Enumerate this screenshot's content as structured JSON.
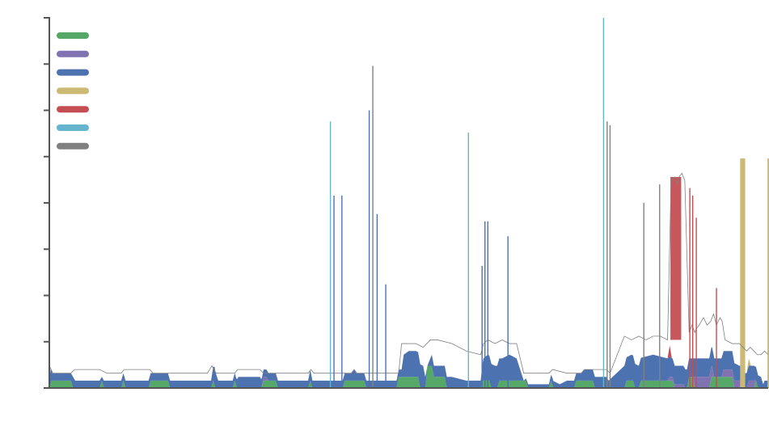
{
  "chart_data": {
    "type": "area",
    "stacked": true,
    "title": "",
    "xlabel": "",
    "ylabel": "",
    "grid": false,
    "legend_position": "top-left",
    "legend_labels_visible": false,
    "tick_labels_visible": false,
    "x_range": [
      0,
      100
    ],
    "y_range": [
      0,
      100
    ],
    "y_tick_count": 9,
    "colors": {
      "green": "#55a868",
      "purple": "#8172b2",
      "blue": "#4c72b0",
      "yellow": "#ccb974",
      "red": "#c44e52",
      "cyan": "#64b5cd",
      "gray": "#808080"
    },
    "series": [
      {
        "color": "#55a868",
        "points": [
          [
            0,
            0
          ],
          [
            0.3,
            2
          ],
          [
            3,
            2
          ],
          [
            3.3,
            0
          ],
          [
            7,
            0
          ],
          [
            7.3,
            2
          ],
          [
            7.6,
            0
          ],
          [
            10,
            0
          ],
          [
            10.3,
            2
          ],
          [
            10.6,
            0
          ],
          [
            13.8,
            0
          ],
          [
            14.1,
            2
          ],
          [
            16.5,
            2
          ],
          [
            16.8,
            0
          ],
          [
            22.5,
            0
          ],
          [
            22.8,
            2
          ],
          [
            23.1,
            0
          ],
          [
            25.5,
            0
          ],
          [
            25.8,
            2
          ],
          [
            26.1,
            0
          ],
          [
            29.5,
            0
          ],
          [
            29.8,
            2
          ],
          [
            31.5,
            2
          ],
          [
            31.8,
            0
          ],
          [
            36,
            0
          ],
          [
            36.3,
            2
          ],
          [
            36.6,
            0
          ],
          [
            40.8,
            0
          ],
          [
            41.1,
            2
          ],
          [
            43.8,
            2
          ],
          [
            44.1,
            0
          ],
          [
            48.3,
            0
          ],
          [
            48.6,
            3
          ],
          [
            51.3,
            3
          ],
          [
            51.6,
            0
          ],
          [
            52.3,
            0
          ],
          [
            52.6,
            6
          ],
          [
            53.2,
            6
          ],
          [
            53.5,
            3
          ],
          [
            55,
            3
          ],
          [
            55.3,
            0
          ],
          [
            60,
            0
          ],
          [
            60.3,
            2
          ],
          [
            61.2,
            2
          ],
          [
            61.5,
            0
          ],
          [
            62.3,
            0
          ],
          [
            62.6,
            2
          ],
          [
            66.3,
            2
          ],
          [
            66.6,
            0
          ],
          [
            69.5,
            0
          ],
          [
            69.8,
            2
          ],
          [
            70.1,
            0
          ],
          [
            73,
            0
          ],
          [
            73.3,
            2
          ],
          [
            75.6,
            2
          ],
          [
            75.9,
            0
          ],
          [
            80,
            0
          ],
          [
            80.3,
            2
          ],
          [
            81.2,
            2
          ],
          [
            81.5,
            0
          ],
          [
            82,
            0
          ],
          [
            82.3,
            2
          ],
          [
            86.7,
            2
          ],
          [
            87,
            0
          ],
          [
            88.7,
            0
          ],
          [
            89,
            3
          ],
          [
            89.5,
            3
          ],
          [
            89.8,
            0
          ],
          [
            91.8,
            0
          ],
          [
            92.1,
            3
          ],
          [
            95,
            3
          ],
          [
            95.3,
            0
          ],
          [
            98,
            0
          ],
          [
            98.3,
            2
          ],
          [
            98.6,
            0
          ],
          [
            100,
            0
          ]
        ]
      },
      {
        "color": "#8172b2",
        "points": [
          [
            0,
            0
          ],
          [
            29.5,
            0
          ],
          [
            29.8,
            1
          ],
          [
            30.2,
            1
          ],
          [
            30.5,
            0
          ],
          [
            86,
            0
          ],
          [
            86.3,
            1
          ],
          [
            88.2,
            1
          ],
          [
            88.5,
            0
          ],
          [
            89.5,
            0
          ],
          [
            89.8,
            3
          ],
          [
            92.2,
            3
          ],
          [
            92.5,
            0
          ],
          [
            93.5,
            0
          ],
          [
            93.8,
            2
          ],
          [
            96.3,
            2
          ],
          [
            96.6,
            0
          ],
          [
            97,
            0
          ],
          [
            97.3,
            2
          ],
          [
            98,
            2
          ],
          [
            98.3,
            0
          ],
          [
            100,
            0
          ]
        ]
      },
      {
        "color": "#4c72b0",
        "points": [
          [
            0,
            2
          ],
          [
            0.2,
            4
          ],
          [
            0.4,
            2
          ],
          [
            3,
            2
          ],
          [
            3.3,
            3
          ],
          [
            3.6,
            2
          ],
          [
            7,
            2
          ],
          [
            7.3,
            1
          ],
          [
            7.6,
            2
          ],
          [
            8.5,
            2
          ],
          [
            10,
            2
          ],
          [
            10.3,
            2
          ],
          [
            14,
            2
          ],
          [
            14.3,
            2
          ],
          [
            16.5,
            2
          ],
          [
            17,
            2
          ],
          [
            20,
            2
          ],
          [
            22.5,
            2
          ],
          [
            23,
            5
          ],
          [
            23.5,
            2
          ],
          [
            26,
            2
          ],
          [
            26.3,
            3
          ],
          [
            29.3,
            3
          ],
          [
            29.6,
            2
          ],
          [
            36,
            2
          ],
          [
            36.3,
            3
          ],
          [
            36.6,
            2
          ],
          [
            42,
            2
          ],
          [
            42.4,
            3
          ],
          [
            42.7,
            2
          ],
          [
            49,
            2
          ],
          [
            49.3,
            6
          ],
          [
            50,
            7
          ],
          [
            51,
            7
          ],
          [
            52,
            6
          ],
          [
            52.6,
            0
          ],
          [
            53.2,
            3
          ],
          [
            53.5,
            3
          ],
          [
            56,
            3
          ],
          [
            58,
            2
          ],
          [
            60,
            2
          ],
          [
            60.4,
            6
          ],
          [
            61,
            7
          ],
          [
            62,
            6
          ],
          [
            63,
            6
          ],
          [
            64,
            7
          ],
          [
            65,
            6
          ],
          [
            66,
            0
          ],
          [
            66.5,
            1
          ],
          [
            69,
            1
          ],
          [
            69.5,
            1
          ],
          [
            70,
            2
          ],
          [
            71,
            1
          ],
          [
            72,
            2
          ],
          [
            74,
            2
          ],
          [
            74.5,
            3
          ],
          [
            77.5,
            3
          ],
          [
            77.8,
            2
          ],
          [
            80,
            6
          ],
          [
            81,
            7
          ],
          [
            82,
            6
          ],
          [
            84,
            7
          ],
          [
            86,
            6
          ],
          [
            86.6,
            5
          ],
          [
            88,
            5
          ],
          [
            90,
            5
          ],
          [
            92,
            5
          ],
          [
            93,
            5
          ],
          [
            94,
            5
          ],
          [
            95,
            5
          ],
          [
            96,
            4
          ],
          [
            97,
            4
          ],
          [
            98,
            4
          ],
          [
            99,
            3
          ],
          [
            99.3,
            1
          ],
          [
            99.5,
            2
          ],
          [
            100,
            2
          ]
        ]
      },
      {
        "color": "#ccb974",
        "points": [
          [
            0,
            0
          ],
          [
            97,
            0
          ],
          [
            97.3,
            2
          ],
          [
            97.6,
            0
          ],
          [
            100,
            0
          ]
        ]
      },
      {
        "color": "#c44e52",
        "points": [
          [
            0,
            0
          ],
          [
            86,
            0
          ],
          [
            86.3,
            3
          ],
          [
            86.6,
            0
          ],
          [
            100,
            0
          ]
        ]
      },
      {
        "color": "#64b5cd",
        "points": [
          [
            0,
            0
          ],
          [
            100,
            0
          ]
        ]
      },
      {
        "color": "#808080",
        "points": [
          [
            0,
            0
          ],
          [
            100,
            0
          ]
        ]
      }
    ],
    "total_outline": {
      "color": "#808080",
      "points": [
        [
          0,
          6
        ],
        [
          0.5,
          4
        ],
        [
          3,
          4
        ],
        [
          3.5,
          5
        ],
        [
          7,
          5
        ],
        [
          8,
          4
        ],
        [
          10,
          4
        ],
        [
          10.4,
          5
        ],
        [
          14,
          5
        ],
        [
          14.4,
          4
        ],
        [
          16.5,
          4
        ],
        [
          17,
          4
        ],
        [
          22,
          4
        ],
        [
          22.6,
          6
        ],
        [
          23.2,
          4
        ],
        [
          25.8,
          4
        ],
        [
          26.2,
          5
        ],
        [
          29.3,
          5
        ],
        [
          29.8,
          4
        ],
        [
          36,
          4
        ],
        [
          36.4,
          5
        ],
        [
          36.8,
          4
        ],
        [
          42,
          4
        ],
        [
          42.4,
          5
        ],
        [
          42.8,
          4
        ],
        [
          48.6,
          4
        ],
        [
          49,
          12
        ],
        [
          50,
          12
        ],
        [
          51,
          12
        ],
        [
          52,
          11
        ],
        [
          52.5,
          12
        ],
        [
          53,
          13
        ],
        [
          54,
          13
        ],
        [
          56,
          12
        ],
        [
          58,
          10
        ],
        [
          60,
          9
        ],
        [
          60.4,
          12
        ],
        [
          61,
          13
        ],
        [
          62,
          12
        ],
        [
          63,
          13
        ],
        [
          64,
          12
        ],
        [
          65,
          12
        ],
        [
          66,
          4
        ],
        [
          69.5,
          4
        ],
        [
          70,
          5
        ],
        [
          72,
          4
        ],
        [
          74,
          4
        ],
        [
          74.4,
          5
        ],
        [
          77.5,
          5
        ],
        [
          78,
          4
        ],
        [
          80,
          14
        ],
        [
          81,
          13
        ],
        [
          82,
          14
        ],
        [
          83,
          13
        ],
        [
          84,
          14
        ],
        [
          85,
          14
        ],
        [
          86,
          13
        ],
        [
          86.5,
          56
        ],
        [
          87,
          57
        ],
        [
          87.3,
          55
        ],
        [
          87.6,
          57
        ],
        [
          88,
          58
        ],
        [
          88.4,
          56
        ],
        [
          89,
          15
        ],
        [
          89.4,
          17
        ],
        [
          89.8,
          15
        ],
        [
          90,
          16
        ],
        [
          90.4,
          17
        ],
        [
          91,
          19
        ],
        [
          91.5,
          17
        ],
        [
          92,
          18
        ],
        [
          92.4,
          20
        ],
        [
          92.8,
          17
        ],
        [
          93.3,
          19
        ],
        [
          93.6,
          18
        ],
        [
          94,
          13
        ],
        [
          95,
          12
        ],
        [
          96,
          12
        ],
        [
          97,
          10
        ],
        [
          97.5,
          11
        ],
        [
          98,
          10
        ],
        [
          98.5,
          9
        ],
        [
          99,
          9
        ],
        [
          99.5,
          10
        ],
        [
          100,
          9
        ]
      ]
    },
    "spikes": [
      {
        "x": 39.1,
        "y": 72,
        "color": "#64b5cd"
      },
      {
        "x": 39.6,
        "y": 52,
        "color": "#4c72b0"
      },
      {
        "x": 40.7,
        "y": 52,
        "color": "#4c72b0"
      },
      {
        "x": 44.5,
        "y": 75,
        "color": "#4c72b0"
      },
      {
        "x": 45.0,
        "y": 87,
        "color": "#808080"
      },
      {
        "x": 45.6,
        "y": 47,
        "color": "#4c72b0"
      },
      {
        "x": 46.8,
        "y": 28,
        "color": "#4c72b0"
      },
      {
        "x": 58.3,
        "y": 69,
        "color": "#64b5cd"
      },
      {
        "x": 60.2,
        "y": 33,
        "color": "#4c72b0"
      },
      {
        "x": 60.6,
        "y": 45,
        "color": "#4c72b0"
      },
      {
        "x": 61.0,
        "y": 45,
        "color": "#4c72b0"
      },
      {
        "x": 63.8,
        "y": 41,
        "color": "#4c72b0"
      },
      {
        "x": 77.1,
        "y": 100,
        "color": "#64b5cd"
      },
      {
        "x": 77.6,
        "y": 72,
        "color": "#808080"
      },
      {
        "x": 78.0,
        "y": 71,
        "color": "#808080"
      },
      {
        "x": 82.7,
        "y": 50,
        "color": "#808080"
      },
      {
        "x": 84.9,
        "y": 55,
        "color": "#808080"
      },
      {
        "x": 89.1,
        "y": 54,
        "color": "#c44e52"
      },
      {
        "x": 89.5,
        "y": 52,
        "color": "#c44e52"
      },
      {
        "x": 90.0,
        "y": 46,
        "color": "#c44e52"
      },
      {
        "x": 92.8,
        "y": 27,
        "color": "#c44e52"
      }
    ],
    "bands": [
      {
        "x0": 86.4,
        "x1": 87.9,
        "y0": 13,
        "y1": 57,
        "color": "#c44e52"
      },
      {
        "x0": 100.1,
        "x1": 101.0,
        "y0": 8,
        "y1": 62,
        "color": "#ccb974"
      },
      {
        "x0": 100.6,
        "x1": 101.0,
        "y0": 8,
        "y1": 60,
        "color": "#ccb974"
      }
    ],
    "yellow_spikes": [
      {
        "x0": 96.1,
        "x1": 96.8,
        "y": 62
      },
      {
        "x0": 99.9,
        "x1": 100.0,
        "y": 62
      }
    ],
    "legend": [
      {
        "label": "",
        "color": "#55a868"
      },
      {
        "label": "",
        "color": "#8172b2"
      },
      {
        "label": "",
        "color": "#4c72b0"
      },
      {
        "label": "",
        "color": "#ccb974"
      },
      {
        "label": "",
        "color": "#c44e52"
      },
      {
        "label": "",
        "color": "#64b5cd"
      },
      {
        "label": "",
        "color": "#808080"
      }
    ]
  }
}
